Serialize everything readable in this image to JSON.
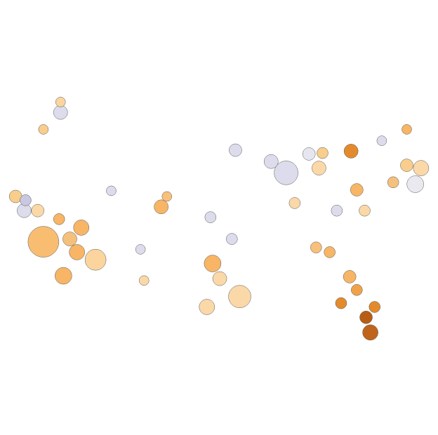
{
  "chart_data": {
    "type": "bubble",
    "xlim": [
      -125,
      -66
    ],
    "ylim": [
      24,
      50
    ],
    "x": [
      -119.9,
      -117.1,
      -112.6,
      -114.6,
      -115.2,
      -116.2,
      -117.7,
      -122.6,
      -123.8,
      -120.7,
      -122.4,
      -117.5,
      -117.5,
      -119.9,
      -103.4,
      -102.6,
      -92.4,
      -96.2,
      -95.2,
      -97.0,
      -93.5,
      -85.9,
      -67.8,
      -67.0,
      -69.0,
      -76.8,
      -74.1,
      -74.7,
      -73.5,
      -77.0,
      -76.0,
      -78.2,
      -93.0,
      -96.5,
      -88.0,
      -82.7,
      -80.8,
      -79.8,
      -81.7,
      -74.9,
      -70.9,
      -105.8,
      -106.3,
      -110.4,
      -81.3,
      -84.7,
      -78.8,
      -76.0,
      -72.5,
      -69.0
    ],
    "values": [
      34.8,
      31.2,
      32.9,
      36.3,
      33.7,
      35.1,
      37.2,
      38.1,
      39.6,
      38.1,
      39.2,
      48.5,
      49.6,
      46.7,
      38.5,
      39.6,
      29.0,
      32.5,
      30.9,
      27.9,
      35.1,
      42.1,
      40.9,
      42.6,
      42.9,
      44.4,
      25.2,
      26.8,
      27.9,
      31.1,
      29.7,
      28.3,
      44.5,
      37.4,
      43.3,
      44.1,
      44.2,
      33.7,
      34.2,
      38.1,
      41.1,
      30.7,
      34.0,
      40.2,
      42.6,
      38.9,
      38.1,
      40.3,
      45.5,
      46.7
    ],
    "sizes": [
      484,
      144,
      225,
      121,
      121,
      100,
      64,
      100,
      81,
      81,
      64,
      100,
      49,
      49,
      100,
      49,
      256,
      144,
      100,
      121,
      64,
      289,
      144,
      121,
      81,
      100,
      121,
      81,
      64,
      81,
      64,
      64,
      81,
      64,
      100,
      81,
      64,
      64,
      64,
      64,
      64,
      49,
      49,
      49,
      100,
      64,
      64,
      81,
      49,
      49
    ],
    "colors": [
      "#f9bd72",
      "#f7b565",
      "#fbd49e",
      "#f7b565",
      "#f7b565",
      "#f5c07c",
      "#f7b565",
      "#dcdcec",
      "#f9cd8c",
      "#fbd8a8",
      "#c8c8e0",
      "#dcdcec",
      "#fbd49e",
      "#f9cd8c",
      "#f7b565",
      "#f9c07c",
      "#fbd8a8",
      "#f7b565",
      "#fbd8a8",
      "#fbd8a8",
      "#dcdcec",
      "#dcdcec",
      "#ebe9f0",
      "#fbd8a8",
      "#f9cd8c",
      "#e38b2c",
      "#c0641b",
      "#b85d15",
      "#e38b2c",
      "#f7b565",
      "#f0a24a",
      "#e38b2c",
      "#dcdcec",
      "#dcdcec",
      "#dcdcec",
      "#e6e6f0",
      "#f9cd8c",
      "#f7b565",
      "#f9c07c",
      "#fbd8a8",
      "#f5c07c",
      "#fbd8a8",
      "#dcdcec",
      "#dcdcec",
      "#fbd8a8",
      "#fbd8a8",
      "#dcdcec",
      "#f7b565",
      "#dcdcec",
      "#f7b565"
    ]
  }
}
